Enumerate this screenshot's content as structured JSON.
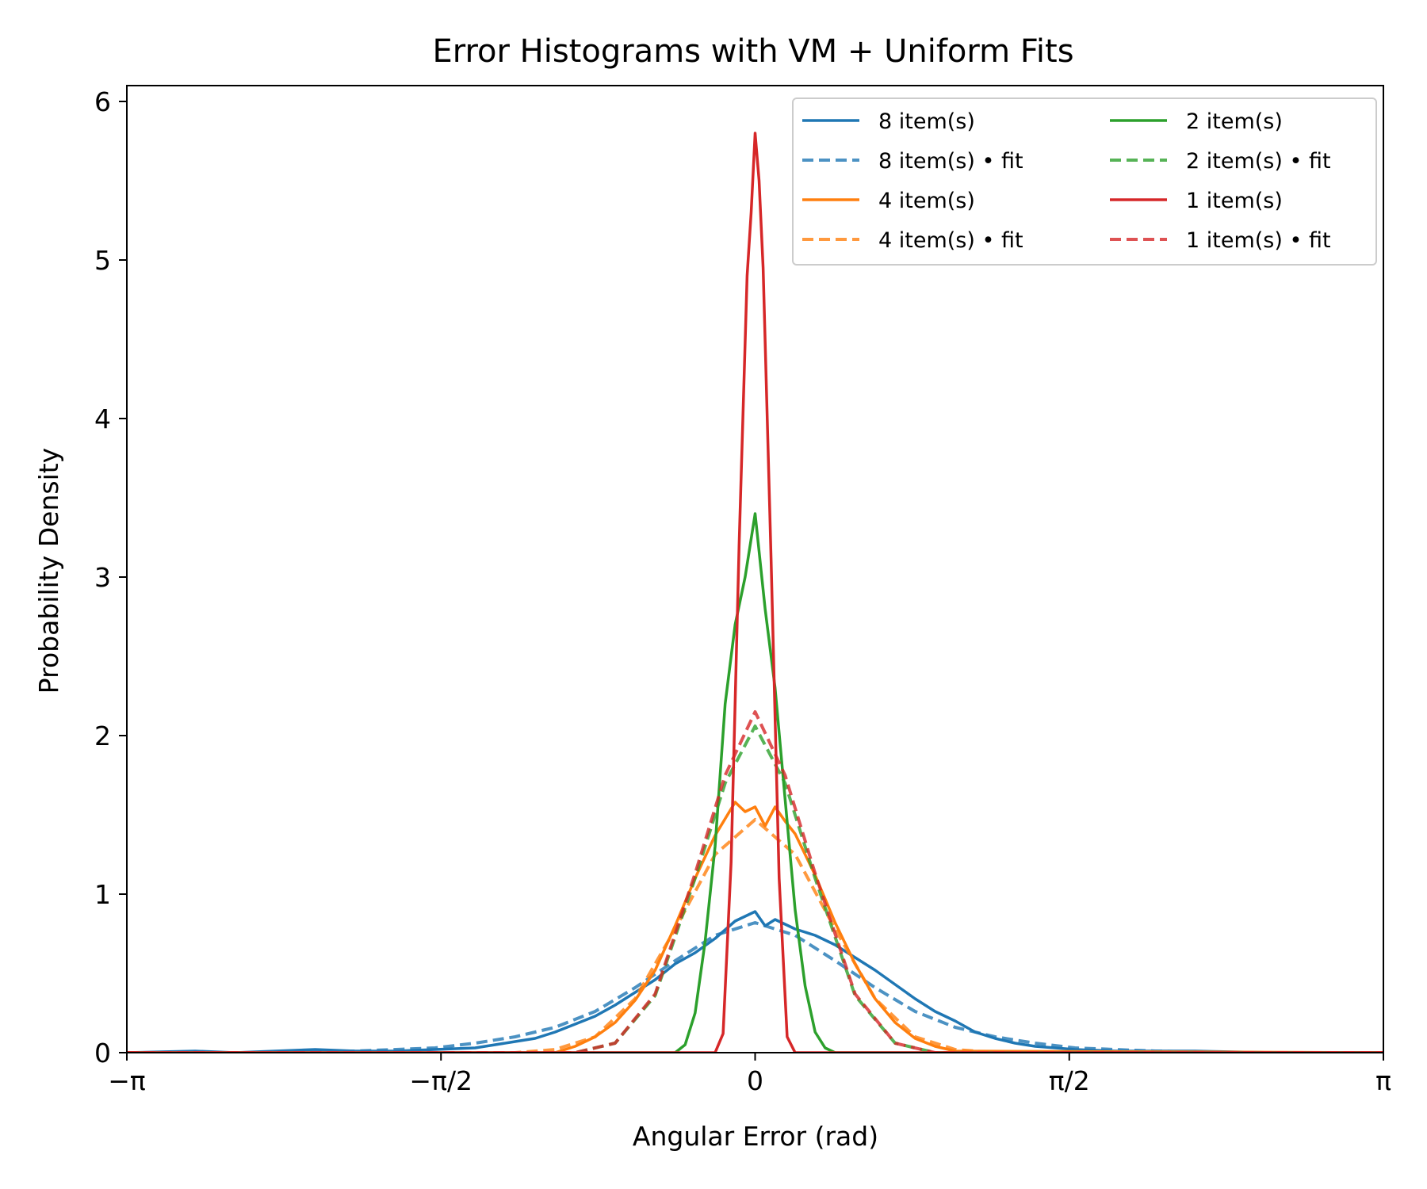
{
  "chart_data": {
    "type": "line",
    "title": "Error Histograms with VM + Uniform Fits",
    "xlabel": "Angular Error (rad)",
    "ylabel": "Probability Density",
    "xlim": [
      -3.14159,
      3.14159
    ],
    "ylim": [
      0,
      6.1
    ],
    "x_ticks": [
      {
        "value": -3.14159,
        "label": "−π"
      },
      {
        "value": -1.5708,
        "label": "−π/2"
      },
      {
        "value": 0,
        "label": "0"
      },
      {
        "value": 1.5708,
        "label": "π/2"
      },
      {
        "value": 3.14159,
        "label": "π"
      }
    ],
    "y_ticks": [
      {
        "value": 0,
        "label": "0"
      },
      {
        "value": 1,
        "label": "1"
      },
      {
        "value": 2,
        "label": "2"
      },
      {
        "value": 3,
        "label": "3"
      },
      {
        "value": 4,
        "label": "4"
      },
      {
        "value": 5,
        "label": "5"
      },
      {
        "value": 6,
        "label": "6"
      }
    ],
    "grid": false,
    "legend_position": "top-right",
    "legend_columns": 2,
    "series": [
      {
        "name": "8 item(s)",
        "style": "solid",
        "color": "#1f77b4",
        "x": [
          -3.14,
          -2.8,
          -2.6,
          -2.2,
          -2.0,
          -1.8,
          -1.6,
          -1.4,
          -1.3,
          -1.2,
          -1.1,
          -1.0,
          -0.9,
          -0.8,
          -0.7,
          -0.6,
          -0.5,
          -0.4,
          -0.3,
          -0.2,
          -0.1,
          0.0,
          0.05,
          0.1,
          0.2,
          0.3,
          0.4,
          0.5,
          0.6,
          0.7,
          0.8,
          0.9,
          1.0,
          1.1,
          1.2,
          1.3,
          1.4,
          1.6,
          1.8,
          2.0,
          2.2,
          2.6,
          3.14
        ],
        "y": [
          0.0,
          0.01,
          0.0,
          0.02,
          0.01,
          0.01,
          0.02,
          0.03,
          0.05,
          0.07,
          0.09,
          0.13,
          0.18,
          0.23,
          0.3,
          0.38,
          0.46,
          0.56,
          0.63,
          0.72,
          0.83,
          0.89,
          0.8,
          0.84,
          0.78,
          0.74,
          0.68,
          0.6,
          0.52,
          0.43,
          0.34,
          0.26,
          0.2,
          0.13,
          0.09,
          0.06,
          0.04,
          0.02,
          0.01,
          0.01,
          0.01,
          0.0,
          0.0
        ]
      },
      {
        "name": "8 item(s) • fit",
        "style": "dashed",
        "color": "#1f77b4",
        "x": [
          -3.14,
          -2.4,
          -2.0,
          -1.6,
          -1.4,
          -1.2,
          -1.0,
          -0.8,
          -0.6,
          -0.4,
          -0.2,
          0.0,
          0.2,
          0.4,
          0.6,
          0.8,
          1.0,
          1.2,
          1.4,
          1.6,
          2.0,
          2.4,
          3.14
        ],
        "y": [
          0.0,
          0.0,
          0.01,
          0.03,
          0.06,
          0.1,
          0.16,
          0.26,
          0.41,
          0.58,
          0.74,
          0.82,
          0.74,
          0.58,
          0.41,
          0.26,
          0.16,
          0.1,
          0.06,
          0.03,
          0.01,
          0.0,
          0.0
        ]
      },
      {
        "name": "4 item(s)",
        "style": "solid",
        "color": "#ff7f0e",
        "x": [
          -3.14,
          -1.0,
          -0.9,
          -0.8,
          -0.7,
          -0.6,
          -0.5,
          -0.4,
          -0.3,
          -0.2,
          -0.1,
          -0.05,
          0.0,
          0.05,
          0.1,
          0.15,
          0.2,
          0.3,
          0.4,
          0.5,
          0.6,
          0.7,
          0.8,
          0.9,
          1.0,
          3.14
        ],
        "y": [
          0.0,
          0.0,
          0.04,
          0.1,
          0.19,
          0.33,
          0.52,
          0.8,
          1.1,
          1.37,
          1.58,
          1.52,
          1.55,
          1.43,
          1.55,
          1.46,
          1.38,
          1.12,
          0.82,
          0.56,
          0.34,
          0.19,
          0.09,
          0.04,
          0.01,
          0.0
        ]
      },
      {
        "name": "4 item(s) • fit",
        "style": "dashed",
        "color": "#ff7f0e",
        "x": [
          -3.14,
          -1.2,
          -1.0,
          -0.8,
          -0.6,
          -0.4,
          -0.2,
          0.0,
          0.2,
          0.4,
          0.6,
          0.8,
          1.0,
          1.2,
          3.14
        ],
        "y": [
          0.0,
          0.0,
          0.02,
          0.1,
          0.34,
          0.78,
          1.25,
          1.47,
          1.25,
          0.78,
          0.34,
          0.1,
          0.02,
          0.0,
          0.0
        ]
      },
      {
        "name": "2 item(s)",
        "style": "solid",
        "color": "#2ca02c",
        "x": [
          -3.14,
          -0.4,
          -0.35,
          -0.3,
          -0.25,
          -0.2,
          -0.15,
          -0.1,
          -0.05,
          0.0,
          0.05,
          0.1,
          0.15,
          0.2,
          0.25,
          0.3,
          0.35,
          0.4,
          3.14
        ],
        "y": [
          0.0,
          0.0,
          0.05,
          0.25,
          0.7,
          1.3,
          2.2,
          2.7,
          3.0,
          3.4,
          2.8,
          2.3,
          1.6,
          0.9,
          0.42,
          0.13,
          0.03,
          0.0,
          0.0
        ]
      },
      {
        "name": "2 item(s) • fit",
        "style": "dashed",
        "color": "#2ca02c",
        "x": [
          -3.14,
          -0.9,
          -0.7,
          -0.5,
          -0.3,
          -0.15,
          0.0,
          0.15,
          0.3,
          0.5,
          0.7,
          0.9,
          3.14
        ],
        "y": [
          0.0,
          0.0,
          0.06,
          0.36,
          1.1,
          1.7,
          2.06,
          1.7,
          1.1,
          0.36,
          0.06,
          0.0,
          0.0
        ]
      },
      {
        "name": "1 item(s)",
        "style": "solid",
        "color": "#d62728",
        "x": [
          -3.14,
          -0.2,
          -0.16,
          -0.12,
          -0.08,
          -0.04,
          -0.02,
          0.0,
          0.02,
          0.04,
          0.08,
          0.12,
          0.16,
          0.2,
          3.14
        ],
        "y": [
          0.0,
          0.0,
          0.12,
          1.2,
          3.2,
          4.9,
          5.3,
          5.8,
          5.5,
          4.95,
          3.1,
          1.1,
          0.1,
          0.0,
          0.0
        ]
      },
      {
        "name": "1 item(s) • fit",
        "style": "dashed",
        "color": "#d62728",
        "x": [
          -3.14,
          -0.9,
          -0.7,
          -0.5,
          -0.3,
          -0.15,
          0.0,
          0.15,
          0.3,
          0.5,
          0.7,
          0.9,
          3.14
        ],
        "y": [
          0.0,
          0.0,
          0.06,
          0.37,
          1.13,
          1.75,
          2.15,
          1.75,
          1.13,
          0.37,
          0.06,
          0.0,
          0.0
        ]
      }
    ],
    "legend_order": [
      0,
      4,
      1,
      5,
      2,
      6,
      3,
      7
    ]
  }
}
